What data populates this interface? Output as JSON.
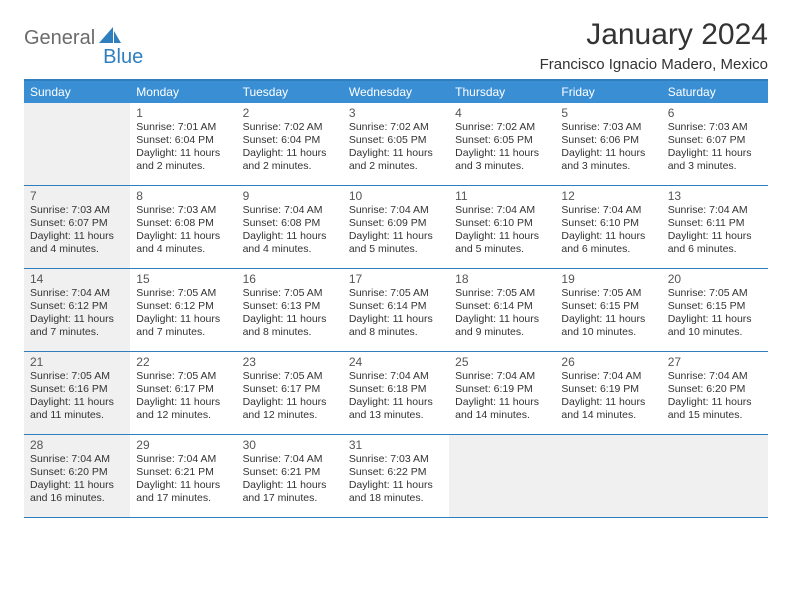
{
  "logo": {
    "text1": "General",
    "text2": "Blue"
  },
  "title": "January 2024",
  "location": "Francisco Ignacio Madero, Mexico",
  "colors": {
    "header_bg": "#3a8fd4",
    "header_border": "#2f7fbf",
    "shaded_bg": "#f0f0f0",
    "text": "#333333"
  },
  "dayNames": [
    "Sunday",
    "Monday",
    "Tuesday",
    "Wednesday",
    "Thursday",
    "Friday",
    "Saturday"
  ],
  "weeks": [
    [
      {
        "shaded": true,
        "day": "",
        "lines": []
      },
      {
        "shaded": false,
        "day": "1",
        "lines": [
          "Sunrise: 7:01 AM",
          "Sunset: 6:04 PM",
          "Daylight: 11 hours",
          "and 2 minutes."
        ]
      },
      {
        "shaded": false,
        "day": "2",
        "lines": [
          "Sunrise: 7:02 AM",
          "Sunset: 6:04 PM",
          "Daylight: 11 hours",
          "and 2 minutes."
        ]
      },
      {
        "shaded": false,
        "day": "3",
        "lines": [
          "Sunrise: 7:02 AM",
          "Sunset: 6:05 PM",
          "Daylight: 11 hours",
          "and 2 minutes."
        ]
      },
      {
        "shaded": false,
        "day": "4",
        "lines": [
          "Sunrise: 7:02 AM",
          "Sunset: 6:05 PM",
          "Daylight: 11 hours",
          "and 3 minutes."
        ]
      },
      {
        "shaded": false,
        "day": "5",
        "lines": [
          "Sunrise: 7:03 AM",
          "Sunset: 6:06 PM",
          "Daylight: 11 hours",
          "and 3 minutes."
        ]
      },
      {
        "shaded": false,
        "day": "6",
        "lines": [
          "Sunrise: 7:03 AM",
          "Sunset: 6:07 PM",
          "Daylight: 11 hours",
          "and 3 minutes."
        ]
      }
    ],
    [
      {
        "shaded": true,
        "day": "7",
        "lines": [
          "Sunrise: 7:03 AM",
          "Sunset: 6:07 PM",
          "Daylight: 11 hours",
          "and 4 minutes."
        ]
      },
      {
        "shaded": false,
        "day": "8",
        "lines": [
          "Sunrise: 7:03 AM",
          "Sunset: 6:08 PM",
          "Daylight: 11 hours",
          "and 4 minutes."
        ]
      },
      {
        "shaded": false,
        "day": "9",
        "lines": [
          "Sunrise: 7:04 AM",
          "Sunset: 6:08 PM",
          "Daylight: 11 hours",
          "and 4 minutes."
        ]
      },
      {
        "shaded": false,
        "day": "10",
        "lines": [
          "Sunrise: 7:04 AM",
          "Sunset: 6:09 PM",
          "Daylight: 11 hours",
          "and 5 minutes."
        ]
      },
      {
        "shaded": false,
        "day": "11",
        "lines": [
          "Sunrise: 7:04 AM",
          "Sunset: 6:10 PM",
          "Daylight: 11 hours",
          "and 5 minutes."
        ]
      },
      {
        "shaded": false,
        "day": "12",
        "lines": [
          "Sunrise: 7:04 AM",
          "Sunset: 6:10 PM",
          "Daylight: 11 hours",
          "and 6 minutes."
        ]
      },
      {
        "shaded": false,
        "day": "13",
        "lines": [
          "Sunrise: 7:04 AM",
          "Sunset: 6:11 PM",
          "Daylight: 11 hours",
          "and 6 minutes."
        ]
      }
    ],
    [
      {
        "shaded": true,
        "day": "14",
        "lines": [
          "Sunrise: 7:04 AM",
          "Sunset: 6:12 PM",
          "Daylight: 11 hours",
          "and 7 minutes."
        ]
      },
      {
        "shaded": false,
        "day": "15",
        "lines": [
          "Sunrise: 7:05 AM",
          "Sunset: 6:12 PM",
          "Daylight: 11 hours",
          "and 7 minutes."
        ]
      },
      {
        "shaded": false,
        "day": "16",
        "lines": [
          "Sunrise: 7:05 AM",
          "Sunset: 6:13 PM",
          "Daylight: 11 hours",
          "and 8 minutes."
        ]
      },
      {
        "shaded": false,
        "day": "17",
        "lines": [
          "Sunrise: 7:05 AM",
          "Sunset: 6:14 PM",
          "Daylight: 11 hours",
          "and 8 minutes."
        ]
      },
      {
        "shaded": false,
        "day": "18",
        "lines": [
          "Sunrise: 7:05 AM",
          "Sunset: 6:14 PM",
          "Daylight: 11 hours",
          "and 9 minutes."
        ]
      },
      {
        "shaded": false,
        "day": "19",
        "lines": [
          "Sunrise: 7:05 AM",
          "Sunset: 6:15 PM",
          "Daylight: 11 hours",
          "and 10 minutes."
        ]
      },
      {
        "shaded": false,
        "day": "20",
        "lines": [
          "Sunrise: 7:05 AM",
          "Sunset: 6:15 PM",
          "Daylight: 11 hours",
          "and 10 minutes."
        ]
      }
    ],
    [
      {
        "shaded": true,
        "day": "21",
        "lines": [
          "Sunrise: 7:05 AM",
          "Sunset: 6:16 PM",
          "Daylight: 11 hours",
          "and 11 minutes."
        ]
      },
      {
        "shaded": false,
        "day": "22",
        "lines": [
          "Sunrise: 7:05 AM",
          "Sunset: 6:17 PM",
          "Daylight: 11 hours",
          "and 12 minutes."
        ]
      },
      {
        "shaded": false,
        "day": "23",
        "lines": [
          "Sunrise: 7:05 AM",
          "Sunset: 6:17 PM",
          "Daylight: 11 hours",
          "and 12 minutes."
        ]
      },
      {
        "shaded": false,
        "day": "24",
        "lines": [
          "Sunrise: 7:04 AM",
          "Sunset: 6:18 PM",
          "Daylight: 11 hours",
          "and 13 minutes."
        ]
      },
      {
        "shaded": false,
        "day": "25",
        "lines": [
          "Sunrise: 7:04 AM",
          "Sunset: 6:19 PM",
          "Daylight: 11 hours",
          "and 14 minutes."
        ]
      },
      {
        "shaded": false,
        "day": "26",
        "lines": [
          "Sunrise: 7:04 AM",
          "Sunset: 6:19 PM",
          "Daylight: 11 hours",
          "and 14 minutes."
        ]
      },
      {
        "shaded": false,
        "day": "27",
        "lines": [
          "Sunrise: 7:04 AM",
          "Sunset: 6:20 PM",
          "Daylight: 11 hours",
          "and 15 minutes."
        ]
      }
    ],
    [
      {
        "shaded": true,
        "day": "28",
        "lines": [
          "Sunrise: 7:04 AM",
          "Sunset: 6:20 PM",
          "Daylight: 11 hours",
          "and 16 minutes."
        ]
      },
      {
        "shaded": false,
        "day": "29",
        "lines": [
          "Sunrise: 7:04 AM",
          "Sunset: 6:21 PM",
          "Daylight: 11 hours",
          "and 17 minutes."
        ]
      },
      {
        "shaded": false,
        "day": "30",
        "lines": [
          "Sunrise: 7:04 AM",
          "Sunset: 6:21 PM",
          "Daylight: 11 hours",
          "and 17 minutes."
        ]
      },
      {
        "shaded": false,
        "day": "31",
        "lines": [
          "Sunrise: 7:03 AM",
          "Sunset: 6:22 PM",
          "Daylight: 11 hours",
          "and 18 minutes."
        ]
      },
      {
        "shaded": true,
        "day": "",
        "lines": []
      },
      {
        "shaded": true,
        "day": "",
        "lines": []
      },
      {
        "shaded": true,
        "day": "",
        "lines": []
      }
    ]
  ]
}
